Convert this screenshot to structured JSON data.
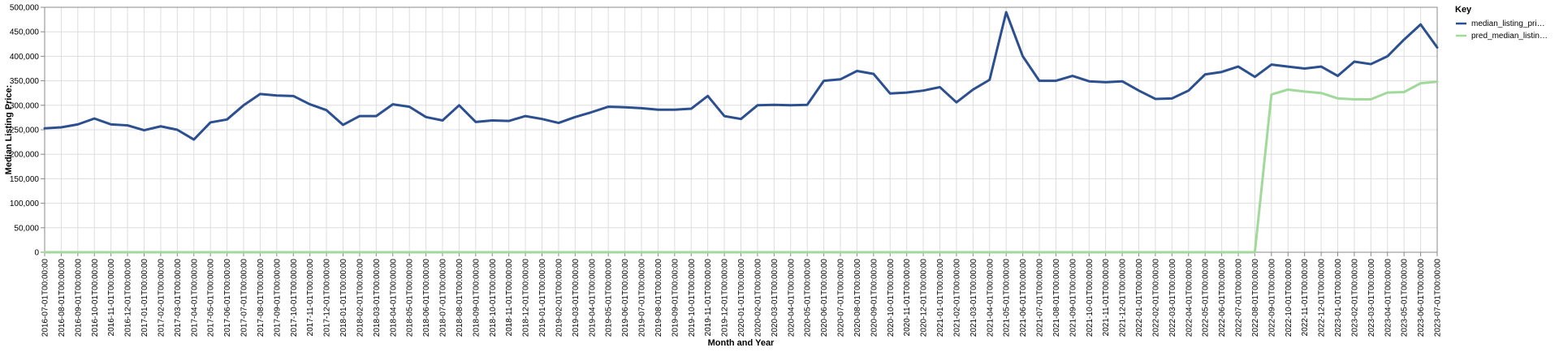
{
  "chart_data": {
    "type": "line",
    "xlabel": "Month and Year",
    "ylabel": "Median Listing Price:",
    "ylim": [
      0,
      500000
    ],
    "y_ticks": [
      "0",
      "50,000",
      "100,000",
      "150,000",
      "200,000",
      "250,000",
      "300,000",
      "350,000",
      "400,000",
      "450,000",
      "500,000"
    ],
    "grid": true,
    "legend": {
      "title": "Key",
      "position": "top-right"
    },
    "x": [
      "2016-07-01T00:00:00",
      "2016-08-01T00:00:00",
      "2016-09-01T00:00:00",
      "2016-10-01T00:00:00",
      "2016-11-01T00:00:00",
      "2016-12-01T00:00:00",
      "2017-01-01T00:00:00",
      "2017-02-01T00:00:00",
      "2017-03-01T00:00:00",
      "2017-04-01T00:00:00",
      "2017-05-01T00:00:00",
      "2017-06-01T00:00:00",
      "2017-07-01T00:00:00",
      "2017-08-01T00:00:00",
      "2017-09-01T00:00:00",
      "2017-10-01T00:00:00",
      "2017-11-01T00:00:00",
      "2017-12-01T00:00:00",
      "2018-01-01T00:00:00",
      "2018-02-01T00:00:00",
      "2018-03-01T00:00:00",
      "2018-04-01T00:00:00",
      "2018-05-01T00:00:00",
      "2018-06-01T00:00:00",
      "2018-07-01T00:00:00",
      "2018-08-01T00:00:00",
      "2018-09-01T00:00:00",
      "2018-10-01T00:00:00",
      "2018-11-01T00:00:00",
      "2018-12-01T00:00:00",
      "2019-01-01T00:00:00",
      "2019-02-01T00:00:00",
      "2019-03-01T00:00:00",
      "2019-04-01T00:00:00",
      "2019-05-01T00:00:00",
      "2019-06-01T00:00:00",
      "2019-07-01T00:00:00",
      "2019-08-01T00:00:00",
      "2019-09-01T00:00:00",
      "2019-10-01T00:00:00",
      "2019-11-01T00:00:00",
      "2019-12-01T00:00:00",
      "2020-01-01T00:00:00",
      "2020-02-01T00:00:00",
      "2020-03-01T00:00:00",
      "2020-04-01T00:00:00",
      "2020-05-01T00:00:00",
      "2020-06-01T00:00:00",
      "2020-07-01T00:00:00",
      "2020-08-01T00:00:00",
      "2020-09-01T00:00:00",
      "2020-10-01T00:00:00",
      "2020-11-01T00:00:00",
      "2020-12-01T00:00:00",
      "2021-01-01T00:00:00",
      "2021-02-01T00:00:00",
      "2021-03-01T00:00:00",
      "2021-04-01T00:00:00",
      "2021-05-01T00:00:00",
      "2021-06-01T00:00:00",
      "2021-07-01T00:00:00",
      "2021-08-01T00:00:00",
      "2021-09-01T00:00:00",
      "2021-10-01T00:00:00",
      "2021-11-01T00:00:00",
      "2021-12-01T00:00:00",
      "2022-01-01T00:00:00",
      "2022-02-01T00:00:00",
      "2022-03-01T00:00:00",
      "2022-04-01T00:00:00",
      "2022-05-01T00:00:00",
      "2022-06-01T00:00:00",
      "2022-07-01T00:00:00",
      "2022-08-01T00:00:00",
      "2022-09-01T00:00:00",
      "2022-10-01T00:00:00",
      "2022-11-01T00:00:00",
      "2022-12-01T00:00:00",
      "2023-01-01T00:00:00",
      "2023-02-01T00:00:00",
      "2023-03-01T00:00:00",
      "2023-04-01T00:00:00",
      "2023-05-01T00:00:00",
      "2023-06-01T00:00:00",
      "2023-07-01T00:00:00"
    ],
    "series": [
      {
        "name": "median_listing_pri…",
        "color": "#2b4f8f",
        "values": [
          253000,
          255000,
          261000,
          273000,
          261000,
          259000,
          249000,
          257000,
          250000,
          230000,
          265000,
          271000,
          300000,
          323000,
          320000,
          319000,
          302000,
          290000,
          260000,
          278000,
          278000,
          302000,
          297000,
          276000,
          269000,
          300000,
          266000,
          269000,
          268000,
          278000,
          272000,
          264000,
          276000,
          286000,
          297000,
          296000,
          294000,
          291000,
          291000,
          293000,
          319000,
          278000,
          272000,
          300000,
          301000,
          300000,
          301000,
          350000,
          353000,
          370000,
          364000,
          324000,
          326000,
          330000,
          337000,
          306000,
          332000,
          352000,
          490000,
          400000,
          350000,
          350000,
          360000,
          349000,
          347000,
          349000,
          330000,
          313000,
          314000,
          330000,
          363000,
          368000,
          379000,
          358000,
          383000,
          379000,
          375000,
          379000,
          360000,
          389000,
          384000,
          400000,
          434000,
          465000,
          418000
        ]
      },
      {
        "name": "pred_median_listin…",
        "color": "#a1d99b",
        "values": [
          0,
          0,
          0,
          0,
          0,
          0,
          0,
          0,
          0,
          0,
          0,
          0,
          0,
          0,
          0,
          0,
          0,
          0,
          0,
          0,
          0,
          0,
          0,
          0,
          0,
          0,
          0,
          0,
          0,
          0,
          0,
          0,
          0,
          0,
          0,
          0,
          0,
          0,
          0,
          0,
          0,
          0,
          0,
          0,
          0,
          0,
          0,
          0,
          0,
          0,
          0,
          0,
          0,
          0,
          0,
          0,
          0,
          0,
          0,
          0,
          0,
          0,
          0,
          0,
          0,
          0,
          0,
          0,
          0,
          0,
          0,
          0,
          0,
          0,
          322000,
          332000,
          328000,
          325000,
          314000,
          312000,
          312000,
          326000,
          327000,
          345000,
          348000
        ]
      }
    ]
  }
}
